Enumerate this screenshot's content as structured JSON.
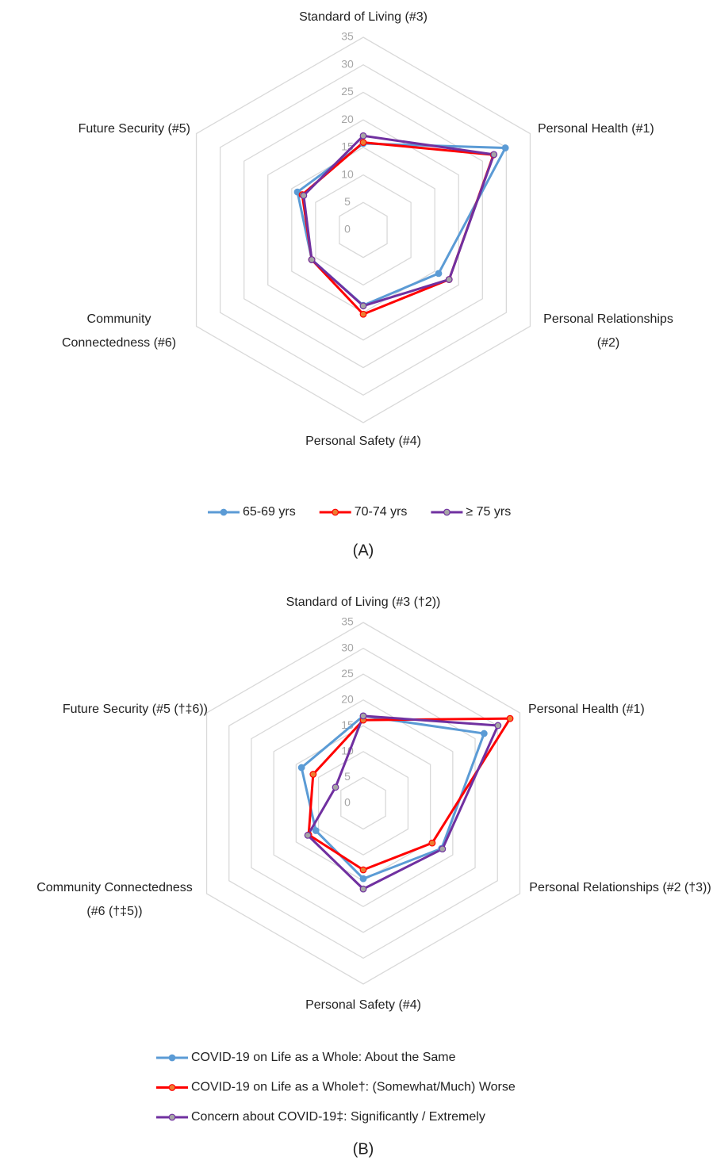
{
  "chart_data": [
    {
      "type": "radar",
      "panel_label": "(A)",
      "categories": [
        "Standard of Living (#3)",
        "Personal Health (#1)",
        "Personal Relationships (#2)",
        "Personal Safety (#4)",
        "Community Connectedness (#6)",
        "Future Security (#5)"
      ],
      "ylim": [
        0,
        35
      ],
      "yticks": [
        0,
        5,
        10,
        15,
        20,
        25,
        30,
        35
      ],
      "grid": true,
      "legend": "bottom",
      "series": [
        {
          "name": "65-69 yrs",
          "color": "#5b9bd5",
          "marker_color": "#5b9bd5",
          "values": [
            15.7,
            29.8,
            15.8,
            13.7,
            10.8,
            13.8
          ]
        },
        {
          "name": "70-74 yrs",
          "color": "#ff0000",
          "marker_color": "#ed7d31",
          "values": [
            15.9,
            27.3,
            18.0,
            15.3,
            10.8,
            12.8
          ]
        },
        {
          "name": "≥ 75 yrs",
          "color": "#7030a0",
          "marker_color": "#a5a5a5",
          "values": [
            17.1,
            27.4,
            18.0,
            13.8,
            10.8,
            12.5
          ]
        }
      ]
    },
    {
      "type": "radar",
      "panel_label": "(B)",
      "categories": [
        "Standard of Living (#3 (†2))",
        "Personal Health (#1)",
        "Personal Relationships (#2 (†3))",
        "Personal Safety (#4)",
        "Community Connectedness (#6 (†‡5))",
        "Future Security (#5 (†‡6))"
      ],
      "ylim": [
        0,
        35
      ],
      "yticks": [
        0,
        5,
        10,
        15,
        20,
        25,
        30,
        35
      ],
      "grid": true,
      "legend": "bottom",
      "series": [
        {
          "name": "COVID-19 on Life as a Whole: About the Same",
          "color": "#5b9bd5",
          "marker_color": "#5b9bd5",
          "values": [
            16.9,
            27.0,
            17.5,
            14.6,
            10.6,
            13.8
          ]
        },
        {
          "name": "COVID-19 on Life as a Whole†: (Somewhat/Much) Worse",
          "color": "#ff0000",
          "marker_color": "#ed7d31",
          "values": [
            16.1,
            32.8,
            15.4,
            12.9,
            12.2,
            11.2
          ]
        },
        {
          "name": "Concern about COVID-19‡: Significantly / Extremely",
          "color": "#7030a0",
          "marker_color": "#a5a5a5",
          "values": [
            16.9,
            30.1,
            17.7,
            16.6,
            12.4,
            6.2
          ]
        }
      ]
    }
  ]
}
